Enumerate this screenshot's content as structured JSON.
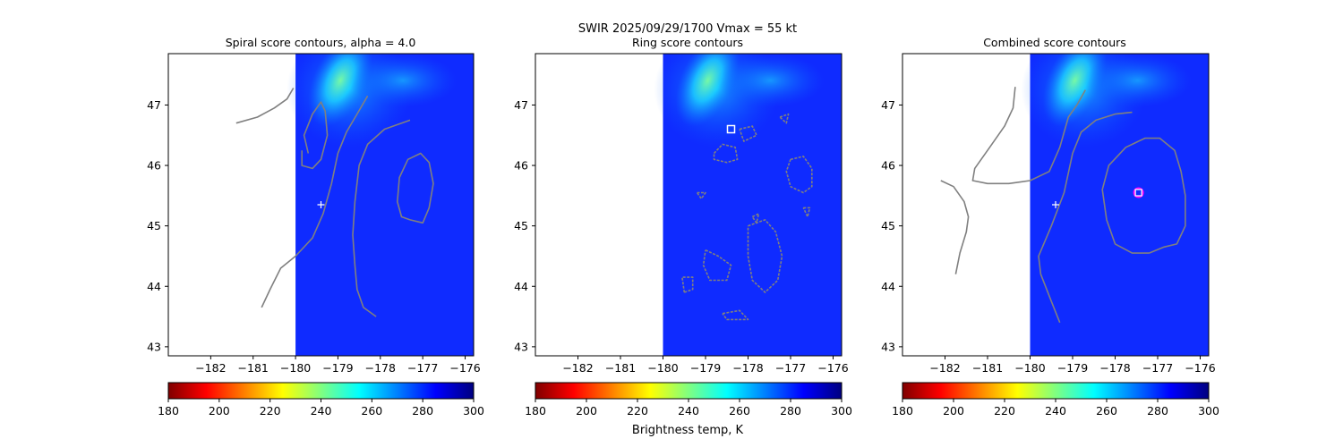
{
  "suptitle": "SWIR  2025/09/29/1700    Vmax = 55 kt",
  "colorbar_label": "Brightness temp, K",
  "colormap": {
    "name": "jet",
    "range": [
      180,
      300
    ],
    "ticks": [
      "180",
      "200",
      "220",
      "240",
      "260",
      "280",
      "300"
    ],
    "stops": [
      "#800000",
      "#ff0000",
      "#ff8000",
      "#ffff00",
      "#80ff80",
      "#00ffff",
      "#0080ff",
      "#0000ff",
      "#000080"
    ],
    "background_color": "#0f2bff"
  },
  "chart_data": [
    {
      "type": "contour",
      "title": "Spiral score contours, alpha =  4.0",
      "xlim": [
        -183,
        -175.8
      ],
      "ylim": [
        42.85,
        47.85
      ],
      "xticks": [
        -182,
        -181,
        -180,
        -179,
        -178,
        -177,
        -176
      ],
      "xtick_labels": [
        "−182",
        "−181",
        "−180",
        "−179",
        "−178",
        "−177",
        "−176"
      ],
      "yticks": [
        43,
        44,
        45,
        46,
        47
      ],
      "ytick_labels": [
        "43",
        "44",
        "45",
        "46",
        "47"
      ],
      "data_left_edge_lon": -180,
      "contour_color": "#808080",
      "contours": [
        [
          [
            -181.4,
            46.7
          ],
          [
            -180.9,
            46.8
          ],
          [
            -180.5,
            46.95
          ],
          [
            -180.2,
            47.1
          ],
          [
            -180.05,
            47.28
          ]
        ],
        [
          [
            -179.7,
            46.2
          ],
          [
            -179.8,
            46.5
          ],
          [
            -179.6,
            46.85
          ],
          [
            -179.4,
            47.05
          ],
          [
            -179.3,
            46.9
          ],
          [
            -179.25,
            46.5
          ],
          [
            -179.4,
            46.1
          ],
          [
            -179.6,
            45.95
          ],
          [
            -179.85,
            46.0
          ],
          [
            -179.85,
            46.25
          ]
        ],
        [
          [
            -180.8,
            43.65
          ],
          [
            -180.6,
            43.95
          ],
          [
            -180.35,
            44.3
          ],
          [
            -180.0,
            44.5
          ],
          [
            -179.6,
            44.8
          ],
          [
            -179.35,
            45.2
          ],
          [
            -179.15,
            45.7
          ],
          [
            -179.0,
            46.2
          ],
          [
            -178.8,
            46.55
          ],
          [
            -178.55,
            46.85
          ],
          [
            -178.3,
            47.15
          ]
        ],
        [
          [
            -178.1,
            43.5
          ],
          [
            -178.4,
            43.65
          ],
          [
            -178.55,
            43.95
          ],
          [
            -178.6,
            44.35
          ],
          [
            -178.65,
            44.85
          ],
          [
            -178.6,
            45.4
          ],
          [
            -178.5,
            46.0
          ],
          [
            -178.3,
            46.35
          ],
          [
            -177.9,
            46.6
          ],
          [
            -177.3,
            46.75
          ]
        ],
        [
          [
            -177.3,
            45.1
          ],
          [
            -177.0,
            45.05
          ],
          [
            -176.85,
            45.3
          ],
          [
            -176.75,
            45.7
          ],
          [
            -176.85,
            46.05
          ],
          [
            -177.05,
            46.2
          ],
          [
            -177.35,
            46.1
          ],
          [
            -177.55,
            45.8
          ],
          [
            -177.6,
            45.4
          ],
          [
            -177.5,
            45.15
          ],
          [
            -177.3,
            45.1
          ]
        ]
      ],
      "markers": [
        {
          "type": "plus",
          "lon": -179.4,
          "lat": 45.35,
          "color": "#ffffff"
        }
      ]
    },
    {
      "type": "contour",
      "title": "Ring score contours",
      "xlim": [
        -183,
        -175.8
      ],
      "ylim": [
        42.85,
        47.85
      ],
      "xticks": [
        -182,
        -181,
        -180,
        -179,
        -178,
        -177,
        -176
      ],
      "xtick_labels": [
        "−182",
        "−181",
        "−180",
        "−179",
        "−178",
        "−177",
        "−176"
      ],
      "yticks": [
        43,
        44,
        45,
        46,
        47
      ],
      "ytick_labels": [
        "43",
        "44",
        "45",
        "46",
        "47"
      ],
      "data_left_edge_lon": -180,
      "contour_color": "#808080",
      "contours": [
        [
          [
            -178.8,
            46.2
          ],
          [
            -178.6,
            46.35
          ],
          [
            -178.3,
            46.3
          ],
          [
            -178.25,
            46.1
          ],
          [
            -178.5,
            46.05
          ],
          [
            -178.8,
            46.1
          ],
          [
            -178.8,
            46.2
          ]
        ],
        [
          [
            -178.2,
            46.6
          ],
          [
            -177.9,
            46.65
          ],
          [
            -177.8,
            46.5
          ],
          [
            -178.1,
            46.4
          ],
          [
            -178.2,
            46.6
          ]
        ],
        [
          [
            -177.0,
            46.1
          ],
          [
            -176.7,
            46.15
          ],
          [
            -176.5,
            45.95
          ],
          [
            -176.5,
            45.65
          ],
          [
            -176.7,
            45.55
          ],
          [
            -177.0,
            45.65
          ],
          [
            -177.1,
            45.9
          ],
          [
            -177.0,
            46.1
          ]
        ],
        [
          [
            -178.0,
            45.0
          ],
          [
            -177.6,
            45.1
          ],
          [
            -177.35,
            44.9
          ],
          [
            -177.2,
            44.5
          ],
          [
            -177.3,
            44.1
          ],
          [
            -177.6,
            43.9
          ],
          [
            -177.9,
            44.1
          ],
          [
            -178.0,
            44.5
          ],
          [
            -178.0,
            45.0
          ]
        ],
        [
          [
            -179.0,
            44.6
          ],
          [
            -178.7,
            44.5
          ],
          [
            -178.4,
            44.35
          ],
          [
            -178.5,
            44.1
          ],
          [
            -178.9,
            44.1
          ],
          [
            -179.05,
            44.35
          ],
          [
            -179.0,
            44.6
          ]
        ],
        [
          [
            -179.5,
            43.9
          ],
          [
            -179.3,
            43.95
          ],
          [
            -179.3,
            44.15
          ],
          [
            -179.55,
            44.15
          ],
          [
            -179.5,
            43.9
          ]
        ],
        [
          [
            -178.6,
            43.55
          ],
          [
            -178.2,
            43.6
          ],
          [
            -178.0,
            43.45
          ],
          [
            -178.5,
            43.45
          ],
          [
            -178.6,
            43.55
          ]
        ],
        [
          [
            -179.2,
            45.55
          ],
          [
            -179.0,
            45.55
          ],
          [
            -179.1,
            45.45
          ],
          [
            -179.2,
            45.55
          ]
        ],
        [
          [
            -177.25,
            46.8
          ],
          [
            -177.05,
            46.85
          ],
          [
            -177.1,
            46.7
          ],
          [
            -177.25,
            46.8
          ]
        ],
        [
          [
            -176.7,
            45.3
          ],
          [
            -176.55,
            45.3
          ],
          [
            -176.6,
            45.15
          ],
          [
            -176.7,
            45.3
          ]
        ],
        [
          [
            -177.9,
            45.15
          ],
          [
            -177.75,
            45.2
          ],
          [
            -177.8,
            45.05
          ],
          [
            -177.9,
            45.15
          ]
        ]
      ],
      "markers": [
        {
          "type": "square",
          "lon": -178.4,
          "lat": 46.6,
          "color": "#ffffff"
        }
      ]
    },
    {
      "type": "contour",
      "title": "Combined score contours",
      "xlim": [
        -183,
        -175.8
      ],
      "ylim": [
        42.85,
        47.85
      ],
      "xticks": [
        -182,
        -181,
        -180,
        -179,
        -178,
        -177,
        -176
      ],
      "xtick_labels": [
        "−182",
        "−181",
        "−180",
        "−179",
        "−178",
        "−177",
        "−176"
      ],
      "yticks": [
        43,
        44,
        45,
        46,
        47
      ],
      "ytick_labels": [
        "43",
        "44",
        "45",
        "46",
        "47"
      ],
      "data_left_edge_lon": -180,
      "contour_color": "#808080",
      "contours": [
        [
          [
            -182.1,
            45.75
          ],
          [
            -181.8,
            45.65
          ],
          [
            -181.55,
            45.4
          ],
          [
            -181.45,
            45.15
          ],
          [
            -181.5,
            44.9
          ],
          [
            -181.65,
            44.55
          ],
          [
            -181.75,
            44.2
          ]
        ],
        [
          [
            -180.35,
            47.3
          ],
          [
            -180.4,
            46.95
          ],
          [
            -180.6,
            46.65
          ],
          [
            -180.95,
            46.3
          ],
          [
            -181.3,
            45.95
          ],
          [
            -181.35,
            45.75
          ],
          [
            -181.0,
            45.7
          ],
          [
            -180.5,
            45.7
          ],
          [
            -180.0,
            45.75
          ],
          [
            -179.55,
            45.9
          ],
          [
            -179.3,
            46.3
          ],
          [
            -179.1,
            46.8
          ],
          [
            -178.9,
            47.0
          ],
          [
            -178.7,
            47.25
          ]
        ],
        [
          [
            -179.3,
            43.4
          ],
          [
            -179.5,
            43.75
          ],
          [
            -179.75,
            44.2
          ],
          [
            -179.8,
            44.5
          ],
          [
            -179.5,
            45.0
          ],
          [
            -179.2,
            45.55
          ],
          [
            -179.0,
            46.2
          ],
          [
            -178.8,
            46.55
          ],
          [
            -178.45,
            46.75
          ],
          [
            -178.0,
            46.85
          ],
          [
            -177.6,
            46.88
          ]
        ],
        [
          [
            -177.2,
            44.55
          ],
          [
            -177.6,
            44.55
          ],
          [
            -178.0,
            44.7
          ],
          [
            -178.2,
            45.1
          ],
          [
            -178.3,
            45.6
          ],
          [
            -178.15,
            46.0
          ],
          [
            -177.75,
            46.3
          ],
          [
            -177.3,
            46.45
          ],
          [
            -176.95,
            46.45
          ],
          [
            -176.6,
            46.25
          ],
          [
            -176.45,
            45.9
          ],
          [
            -176.35,
            45.5
          ],
          [
            -176.35,
            45.0
          ],
          [
            -176.55,
            44.7
          ],
          [
            -176.85,
            44.65
          ],
          [
            -177.2,
            44.55
          ]
        ]
      ],
      "markers": [
        {
          "type": "plus",
          "lon": -179.4,
          "lat": 45.35,
          "color": "#ffffff"
        },
        {
          "type": "circle-square",
          "lon": -177.45,
          "lat": 45.55,
          "color": "#ff00ff"
        }
      ]
    }
  ]
}
